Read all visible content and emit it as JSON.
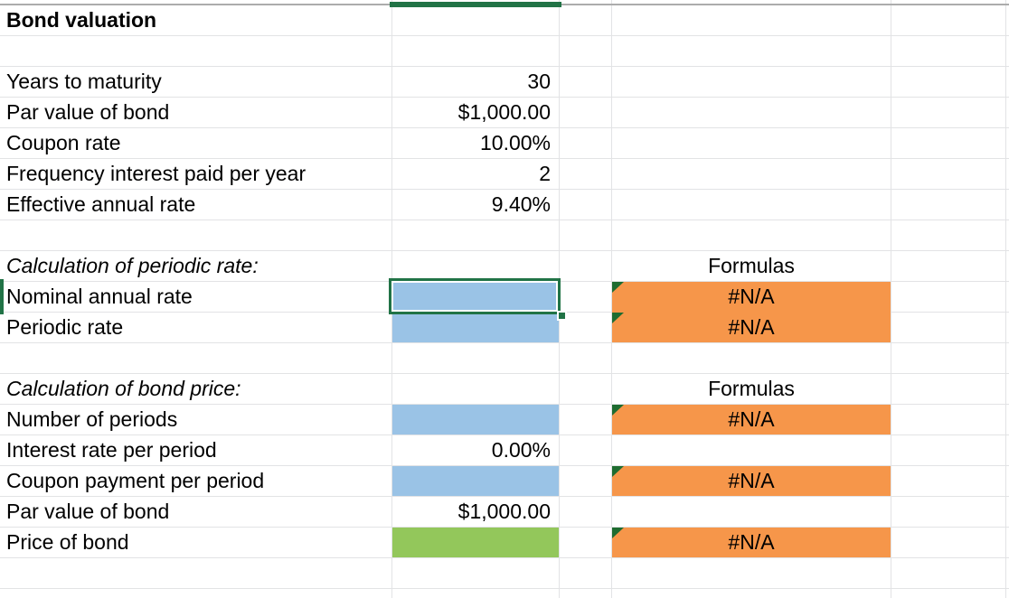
{
  "sheet": {
    "title": "Bond valuation",
    "inputs": [
      {
        "label": "Years to maturity",
        "value": "30"
      },
      {
        "label": "Par value of bond",
        "value": "$1,000.00"
      },
      {
        "label": "Coupon rate",
        "value": "10.00%"
      },
      {
        "label": "Frequency interest paid per year",
        "value": "2"
      },
      {
        "label": "Effective annual rate",
        "value": "9.40%"
      }
    ],
    "periodic_section": {
      "heading": "Calculation of periodic rate:",
      "formulas_header": "Formulas",
      "rows": [
        {
          "label": "Nominal annual rate",
          "value": "",
          "formula": "#N/A",
          "selected": true
        },
        {
          "label": "Periodic rate",
          "value": "",
          "formula": "#N/A",
          "selected": false
        }
      ]
    },
    "price_section": {
      "heading": "Calculation of bond price:",
      "formulas_header": "Formulas",
      "rows": [
        {
          "label": "Number of periods",
          "value": "",
          "formula": "#N/A"
        },
        {
          "label": "Interest rate per period",
          "value": "0.00%",
          "formula": ""
        },
        {
          "label": "Coupon payment per period",
          "value": "",
          "formula": "#N/A"
        },
        {
          "label": "Par value of bond",
          "value": "$1,000.00",
          "formula": ""
        },
        {
          "label": "Price of bond",
          "value": "",
          "formula": "#N/A"
        }
      ]
    }
  },
  "colors": {
    "accent_green": "#217346",
    "triangle_green": "#1E6C30",
    "fill_blue": "#9AC3E6",
    "fill_green": "#93C75B",
    "fill_orange": "#F6964A",
    "gridline": "#E2E3E5",
    "gridline_dark": "#ACACAC"
  }
}
